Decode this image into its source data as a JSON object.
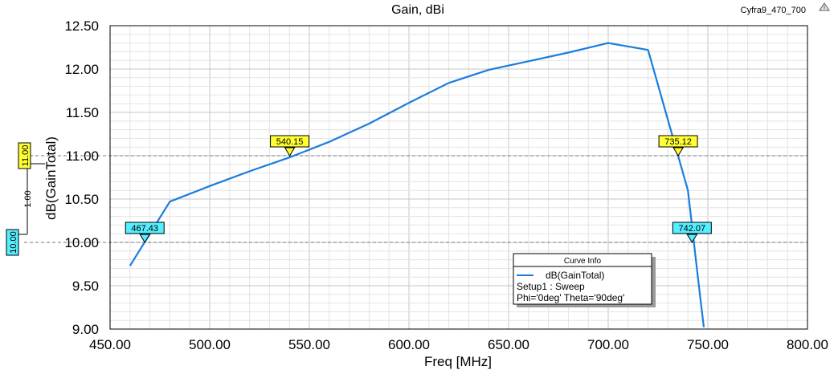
{
  "window": {
    "title": "Gain, dBi",
    "project_name": "Cyfra9_470_700"
  },
  "chart_data": {
    "type": "line",
    "title": "Gain, dBi",
    "xlabel": "Freq [MHz]",
    "ylabel": "dB(GainTotal)",
    "xlim": [
      450,
      800
    ],
    "ylim": [
      9.0,
      12.5
    ],
    "x_ticks": [
      "450.00",
      "500.00",
      "550.00",
      "600.00",
      "650.00",
      "700.00",
      "750.00",
      "800.00"
    ],
    "y_ticks": [
      "9.00",
      "9.50",
      "10.00",
      "10.50",
      "11.00",
      "11.50",
      "12.00",
      "12.50"
    ],
    "grid": true,
    "series": [
      {
        "name": "dB(GainTotal)",
        "color": "#1a7ddd",
        "x": [
          460,
          480,
          500,
          520,
          540,
          560,
          580,
          600,
          620,
          640,
          660,
          680,
          700,
          720,
          740,
          742,
          744,
          746,
          748
        ],
        "y": [
          9.73,
          10.47,
          10.65,
          10.82,
          10.98,
          11.16,
          11.37,
          11.61,
          11.84,
          11.99,
          12.09,
          12.19,
          12.3,
          12.22,
          10.6,
          10.2,
          9.8,
          9.4,
          9.02
        ]
      }
    ],
    "markers": [
      {
        "label": "467.43",
        "x": 467.43,
        "y": 10.0,
        "color": "#55eeff"
      },
      {
        "label": "540.15",
        "x": 540.15,
        "y": 11.0,
        "color": "#ffff33"
      },
      {
        "label": "735.12",
        "x": 735.12,
        "y": 11.0,
        "color": "#ffff33"
      },
      {
        "label": "742.07",
        "x": 742.07,
        "y": 10.0,
        "color": "#55eeff"
      }
    ],
    "reference_lines": [
      {
        "y": 11.0,
        "label": "11.00",
        "color": "#ffff33"
      },
      {
        "y": 10.0,
        "label": "10.00",
        "color": "#55eeff"
      }
    ],
    "delta_label": "1.00",
    "legend": {
      "title": "Curve Info",
      "entry": "dB(GainTotal)",
      "line1": "Setup1 : Sweep",
      "line2": "Phi='0deg' Theta='90deg'",
      "placement": "bottom-right"
    }
  }
}
